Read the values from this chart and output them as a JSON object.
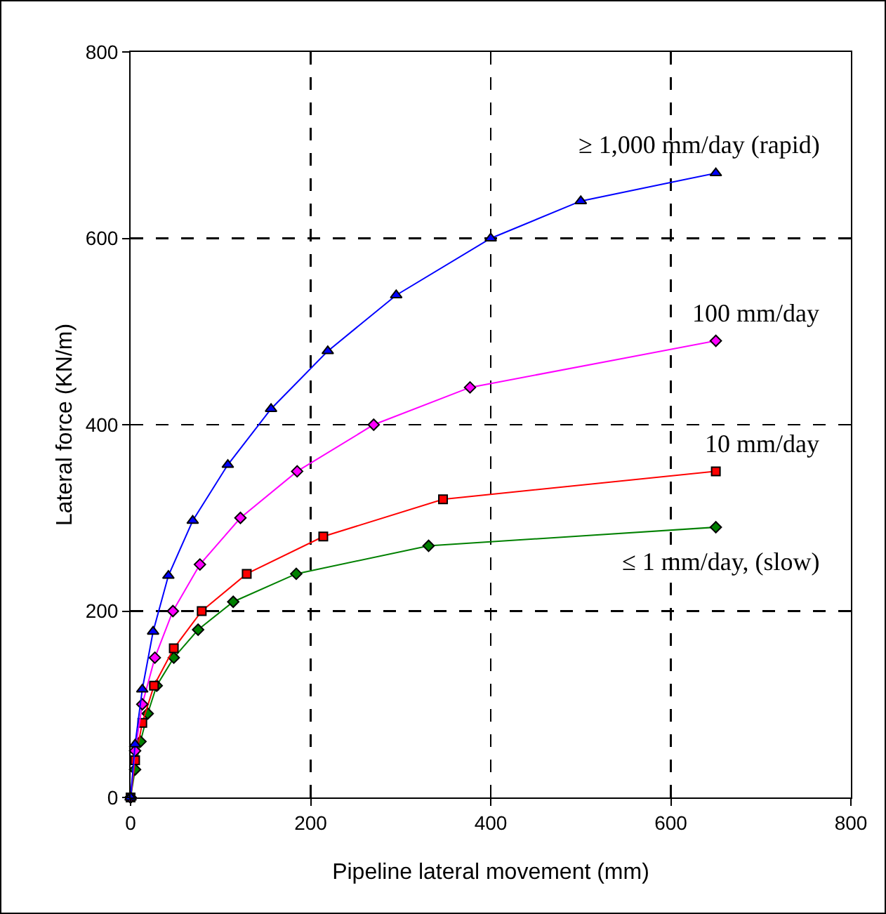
{
  "chart_data": {
    "type": "line",
    "xlabel": "Pipeline lateral movement (mm)",
    "ylabel": "Lateral force (KN/m)",
    "xlim": [
      0,
      800
    ],
    "ylim": [
      0,
      800
    ],
    "xticks": [
      0,
      200,
      400,
      600,
      800
    ],
    "yticks": [
      0,
      200,
      400,
      600,
      800
    ],
    "grid": true,
    "legend": false,
    "line_style": "solid",
    "series": [
      {
        "name": "≥ 1,000 mm/day (rapid)",
        "color": "#0000ff",
        "marker": "triangle",
        "x": [
          0,
          5,
          13,
          25,
          42,
          69,
          108,
          156,
          219,
          295,
          400,
          500,
          650
        ],
        "values": [
          0,
          57,
          116,
          178,
          238,
          297,
          357,
          417,
          479,
          539,
          600,
          640,
          670
        ]
      },
      {
        "name": "100 mm/day",
        "color": "#ff00ff",
        "marker": "diamond",
        "x": [
          0,
          5,
          13,
          27,
          47,
          77,
          122,
          185,
          270,
          377,
          650
        ],
        "values": [
          0,
          50,
          100,
          150,
          200,
          250,
          300,
          350,
          400,
          440,
          490
        ]
      },
      {
        "name": "10 mm/day",
        "color": "#ff0000",
        "marker": "square",
        "x": [
          0,
          5,
          13,
          26,
          48,
          79,
          129,
          214,
          347,
          650
        ],
        "values": [
          0,
          40,
          80,
          120,
          160,
          200,
          240,
          280,
          320,
          350
        ]
      },
      {
        "name": "≤ 1 mm/day, (slow)",
        "color": "#008000",
        "marker": "diamond",
        "x": [
          0,
          5,
          11,
          19,
          29,
          48,
          75,
          114,
          184,
          331,
          650
        ],
        "values": [
          0,
          30,
          60,
          90,
          120,
          150,
          180,
          210,
          240,
          270,
          290
        ]
      }
    ]
  }
}
